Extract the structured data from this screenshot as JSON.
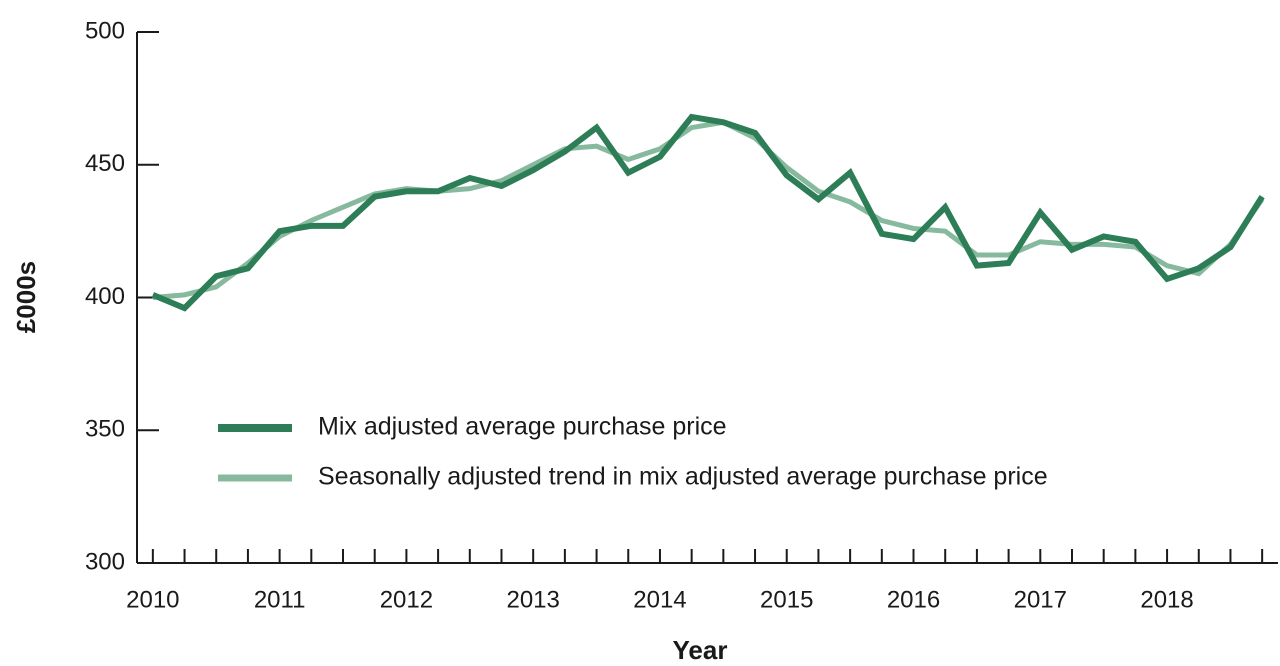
{
  "chart_data": {
    "type": "line",
    "x_label": "Year",
    "y_label": "£000s",
    "x": [
      2010,
      2010.25,
      2010.5,
      2010.75,
      2011,
      2011.25,
      2011.5,
      2011.75,
      2012,
      2012.25,
      2012.5,
      2012.75,
      2013,
      2013.25,
      2013.5,
      2013.75,
      2014,
      2014.25,
      2014.5,
      2014.75,
      2015,
      2015.25,
      2015.5,
      2015.75,
      2016,
      2016.25,
      2016.5,
      2016.75,
      2017,
      2017.25,
      2017.5,
      2017.75,
      2018,
      2018.25,
      2018.5,
      2018.75
    ],
    "series": [
      {
        "name": "Seasonally adjusted trend in mix adjusted average purchase price",
        "color": "#86b99e",
        "values": [
          400,
          401,
          404,
          413,
          423,
          429,
          434,
          439,
          441,
          440,
          441,
          444,
          450,
          456,
          457,
          452,
          456,
          464,
          466,
          460,
          449,
          440,
          436,
          429,
          426,
          425,
          416,
          416,
          421,
          420,
          420,
          419,
          412,
          409,
          420,
          437
        ]
      },
      {
        "name": "Mix adjusted average purchase price",
        "color": "#2d7d57",
        "values": [
          401,
          396,
          408,
          411,
          425,
          427,
          427,
          438,
          440,
          440,
          445,
          442,
          448,
          455,
          464,
          447,
          453,
          468,
          466,
          462,
          446,
          437,
          447,
          424,
          422,
          434,
          412,
          413,
          432,
          418,
          423,
          421,
          407,
          411,
          419,
          438
        ]
      }
    ],
    "xlim": [
      2009.875,
      2018.875
    ],
    "xticks": [
      2010,
      2011,
      2012,
      2013,
      2014,
      2015,
      2016,
      2017,
      2018
    ],
    "ylim": [
      300,
      500
    ],
    "yticks": [
      300,
      350,
      400,
      450,
      500
    ],
    "grid": false,
    "legend": "lower left"
  }
}
